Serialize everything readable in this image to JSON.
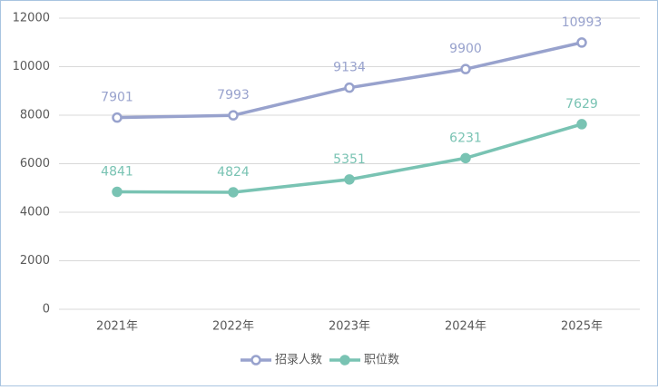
{
  "chart_data": {
    "type": "line",
    "categories": [
      "2021年",
      "2022年",
      "2023年",
      "2024年",
      "2025年"
    ],
    "series": [
      {
        "name": "招录人数",
        "color": "#98a2cd",
        "marker": "hollow",
        "values": [
          7901,
          7993,
          9134,
          9900,
          10993
        ]
      },
      {
        "name": "职位数",
        "color": "#79c3b3",
        "marker": "filled",
        "values": [
          4841,
          4824,
          5351,
          6231,
          7629
        ]
      }
    ],
    "ylim": [
      0,
      12000
    ],
    "yticks": [
      0,
      2000,
      4000,
      6000,
      8000,
      10000,
      12000
    ],
    "grid": true,
    "legend": "bottom",
    "data_labels": true
  }
}
